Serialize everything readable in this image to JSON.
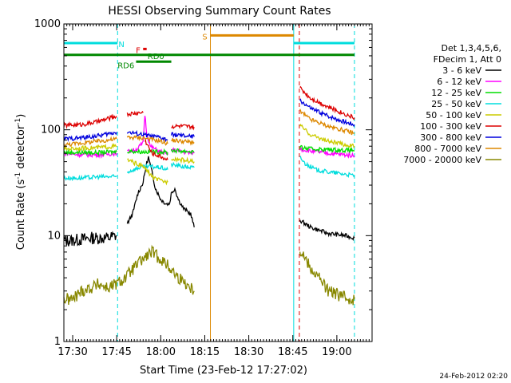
{
  "chart_data": {
    "type": "line",
    "title": "HESSI Observing Summary Count Rates",
    "xlabel": "Start Time (23-Feb-12 17:27:02)",
    "ylabel_main": "Count Rate (s",
    "ylabel_sup1": "-1",
    "ylabel_mid": " detector",
    "ylabel_sup2": "-1",
    "ylabel_end": ")",
    "yscale": "log",
    "ylim": [
      1,
      1000
    ],
    "xlim_minutes": [
      17.45,
      19.2
    ],
    "x_unit": "hours",
    "y_ticks": [
      {
        "v": 1,
        "label": "1"
      },
      {
        "v": 10,
        "label": "10"
      },
      {
        "v": 100,
        "label": "100"
      },
      {
        "v": 1000,
        "label": "1000"
      }
    ],
    "x_ticks": [
      {
        "v": 17.5,
        "label": "17:30"
      },
      {
        "v": 17.75,
        "label": "17:45"
      },
      {
        "v": 18.0,
        "label": "18:00"
      },
      {
        "v": 18.25,
        "label": "18:15"
      },
      {
        "v": 18.5,
        "label": "18:30"
      },
      {
        "v": 18.75,
        "label": "18:45"
      },
      {
        "v": 19.0,
        "label": "19:00"
      }
    ],
    "legend_header": [
      "Det 1,3,4,5,6,",
      "FDecim 1, Att 0"
    ],
    "legend_placement": "right",
    "series": [
      {
        "name": "3 - 6 keV",
        "color": "#000000",
        "segments": [
          [
            [
              17.45,
              9
            ],
            [
              17.5,
              9
            ],
            [
              17.6,
              9.5
            ],
            [
              17.7,
              9.5
            ],
            [
              17.75,
              10
            ]
          ],
          [
            [
              17.81,
              13
            ],
            [
              17.84,
              16
            ],
            [
              17.87,
              25
            ],
            [
              17.9,
              32
            ],
            [
              17.92,
              48
            ],
            [
              17.93,
              55
            ],
            [
              17.95,
              40
            ],
            [
              17.97,
              28
            ],
            [
              18.0,
              22
            ],
            [
              18.03,
              20
            ],
            [
              18.05,
              20
            ],
            [
              18.06,
              25
            ],
            [
              18.08,
              28
            ],
            [
              18.1,
              22
            ],
            [
              18.13,
              18
            ],
            [
              18.17,
              16
            ],
            [
              18.19,
              12
            ]
          ],
          [
            [
              18.79,
              14
            ],
            [
              18.85,
              12
            ],
            [
              18.95,
              10.5
            ],
            [
              19.05,
              10
            ],
            [
              19.1,
              9.5
            ]
          ]
        ]
      },
      {
        "name": "6 - 12 keV",
        "color": "#ff00ff",
        "segments": [
          [
            [
              17.45,
              60
            ],
            [
              17.55,
              58
            ],
            [
              17.65,
              58
            ],
            [
              17.75,
              60
            ]
          ],
          [
            [
              17.81,
              62
            ],
            [
              17.86,
              65
            ],
            [
              17.9,
              75
            ],
            [
              17.91,
              140
            ],
            [
              17.92,
              95
            ],
            [
              17.94,
              70
            ],
            [
              17.98,
              64
            ],
            [
              18.02,
              60
            ],
            [
              18.04,
              58
            ]
          ],
          [
            [
              18.06,
              65
            ],
            [
              18.12,
              62
            ],
            [
              18.19,
              60
            ]
          ],
          [
            [
              18.79,
              66
            ],
            [
              18.85,
              63
            ],
            [
              18.95,
              60
            ],
            [
              19.05,
              58
            ],
            [
              19.1,
              57
            ]
          ]
        ]
      },
      {
        "name": "12 - 25 keV",
        "color": "#00dd00",
        "segments": [
          [
            [
              17.45,
              61
            ],
            [
              17.55,
              61
            ],
            [
              17.65,
              61
            ],
            [
              17.75,
              62
            ]
          ],
          [
            [
              17.81,
              63
            ],
            [
              17.9,
              62
            ],
            [
              18.0,
              62
            ],
            [
              18.04,
              61
            ]
          ],
          [
            [
              18.06,
              64
            ],
            [
              18.12,
              63
            ],
            [
              18.19,
              62
            ]
          ],
          [
            [
              18.79,
              68
            ],
            [
              18.85,
              66
            ],
            [
              18.95,
              65
            ],
            [
              19.05,
              64
            ],
            [
              19.1,
              64
            ]
          ]
        ]
      },
      {
        "name": "25 - 50 keV",
        "color": "#00dddd",
        "segments": [
          [
            [
              17.45,
              35
            ],
            [
              17.55,
              35
            ],
            [
              17.65,
              36
            ],
            [
              17.75,
              36
            ]
          ],
          [
            [
              17.81,
              40
            ],
            [
              17.88,
              44
            ],
            [
              17.94,
              45
            ],
            [
              18.0,
              44
            ],
            [
              18.04,
              42
            ]
          ],
          [
            [
              18.06,
              47
            ],
            [
              18.12,
              45
            ],
            [
              18.19,
              44
            ]
          ],
          [
            [
              18.79,
              55
            ],
            [
              18.82,
              48
            ],
            [
              18.88,
              42
            ],
            [
              18.95,
              40
            ],
            [
              19.05,
              38
            ],
            [
              19.1,
              37
            ]
          ]
        ]
      },
      {
        "name": "50 - 100 keV",
        "color": "#cccc00",
        "segments": [
          [
            [
              17.45,
              66
            ],
            [
              17.55,
              67
            ],
            [
              17.65,
              68
            ],
            [
              17.75,
              70
            ]
          ],
          [
            [
              17.81,
              52
            ],
            [
              17.9,
              45
            ],
            [
              17.96,
              35
            ],
            [
              18.0,
              33
            ],
            [
              18.04,
              32
            ]
          ],
          [
            [
              18.06,
              54
            ],
            [
              18.12,
              52
            ],
            [
              18.19,
              50
            ]
          ],
          [
            [
              18.79,
              110
            ],
            [
              18.85,
              90
            ],
            [
              18.95,
              78
            ],
            [
              19.05,
              72
            ],
            [
              19.1,
              70
            ]
          ]
        ]
      },
      {
        "name": "100 - 300 keV",
        "color": "#dd0000",
        "segments": [
          [
            [
              17.45,
              110
            ],
            [
              17.55,
              112
            ],
            [
              17.65,
              120
            ],
            [
              17.75,
              135
            ]
          ],
          [
            [
              17.81,
              140
            ],
            [
              17.88,
              145
            ],
            [
              17.9,
              145
            ]
          ],
          [
            [
              17.91,
              80
            ],
            [
              17.95,
              60
            ],
            [
              18.0,
              56
            ],
            [
              18.04,
              52
            ]
          ],
          [
            [
              18.06,
              108
            ],
            [
              18.12,
              108
            ],
            [
              18.19,
              106
            ]
          ],
          [
            [
              18.79,
              250
            ],
            [
              18.85,
              200
            ],
            [
              18.95,
              165
            ],
            [
              19.05,
              140
            ],
            [
              19.1,
              130
            ]
          ]
        ]
      },
      {
        "name": "300 - 800 keV",
        "color": "#0000dd",
        "segments": [
          [
            [
              17.45,
              82
            ],
            [
              17.55,
              84
            ],
            [
              17.65,
              88
            ],
            [
              17.75,
              95
            ]
          ],
          [
            [
              17.81,
              95
            ],
            [
              17.9,
              90
            ],
            [
              18.0,
              84
            ],
            [
              18.04,
              80
            ]
          ],
          [
            [
              18.06,
              90
            ],
            [
              18.12,
              88
            ],
            [
              18.19,
              86
            ]
          ],
          [
            [
              18.79,
              190
            ],
            [
              18.85,
              160
            ],
            [
              18.95,
              135
            ],
            [
              19.05,
              118
            ],
            [
              19.1,
              112
            ]
          ]
        ]
      },
      {
        "name": "800 - 7000 keV",
        "color": "#dd8800",
        "segments": [
          [
            [
              17.45,
              72
            ],
            [
              17.55,
              75
            ],
            [
              17.65,
              78
            ],
            [
              17.75,
              82
            ]
          ],
          [
            [
              17.81,
              85
            ],
            [
              17.9,
              84
            ],
            [
              18.0,
              78
            ],
            [
              18.04,
              74
            ]
          ],
          [
            [
              18.06,
              80
            ],
            [
              18.12,
              78
            ],
            [
              18.19,
              76
            ]
          ],
          [
            [
              18.79,
              150
            ],
            [
              18.85,
              125
            ],
            [
              18.95,
              108
            ],
            [
              19.05,
              98
            ],
            [
              19.1,
              92
            ]
          ]
        ]
      },
      {
        "name": "7000 - 20000 keV",
        "color": "#888800",
        "segments": [
          [
            [
              17.45,
              2.5
            ],
            [
              17.5,
              2.5
            ],
            [
              17.55,
              3
            ],
            [
              17.6,
              3.2
            ],
            [
              17.65,
              3.5
            ],
            [
              17.7,
              3.2
            ],
            [
              17.75,
              3.5
            ],
            [
              17.8,
              4
            ],
            [
              17.85,
              5
            ],
            [
              17.9,
              6
            ],
            [
              17.95,
              7
            ],
            [
              18.0,
              6
            ],
            [
              18.05,
              5
            ],
            [
              18.1,
              4
            ],
            [
              18.15,
              3.5
            ],
            [
              18.19,
              3
            ]
          ],
          [
            [
              18.79,
              7.5
            ],
            [
              18.85,
              5
            ],
            [
              18.9,
              4
            ],
            [
              18.95,
              3
            ],
            [
              19.0,
              2.8
            ],
            [
              19.05,
              2.6
            ],
            [
              19.1,
              2.5
            ]
          ]
        ]
      }
    ],
    "vertical_lines": [
      {
        "x": 17.45,
        "color": "#00dddd",
        "style": "solid"
      },
      {
        "x": 17.755,
        "color": "#00dddd",
        "style": "dashed"
      },
      {
        "x": 18.282,
        "color": "#dd8800",
        "style": "solid"
      },
      {
        "x": 18.755,
        "color": "#00dddd",
        "style": "solid"
      },
      {
        "x": 18.787,
        "color": "#dd0000",
        "style": "dashed"
      },
      {
        "x": 19.1,
        "color": "#00dddd",
        "style": "dashed"
      }
    ],
    "flag_bars": [
      {
        "label": "N",
        "color": "#00dddd",
        "x1": 17.45,
        "x2": 17.755,
        "y": 660,
        "label_x": 17.76,
        "label_anchor": "start"
      },
      {
        "label": "",
        "color": "#00dddd",
        "x1": 18.755,
        "x2": 19.1,
        "y": 660,
        "label_x": 0,
        "label_anchor": "start"
      },
      {
        "label": "S",
        "color": "#dd8800",
        "x1": 18.282,
        "x2": 18.755,
        "y": 780,
        "label_x": 18.265,
        "label_anchor": "end"
      },
      {
        "label": "F",
        "color": "#dd0000",
        "x1": 17.9,
        "x2": 17.92,
        "y": 580,
        "label_x": 17.885,
        "label_anchor": "end"
      },
      {
        "label": "RD0",
        "color": "#008800",
        "x1": 17.45,
        "x2": 19.1,
        "y": 510,
        "label_x": 17.925,
        "label_anchor": "start"
      },
      {
        "label": "RD6",
        "color": "#008800",
        "x1": 17.86,
        "x2": 18.06,
        "y": 440,
        "label_x": 17.85,
        "label_anchor": "end"
      }
    ],
    "timestamp": "24-Feb-2012 02:20"
  }
}
